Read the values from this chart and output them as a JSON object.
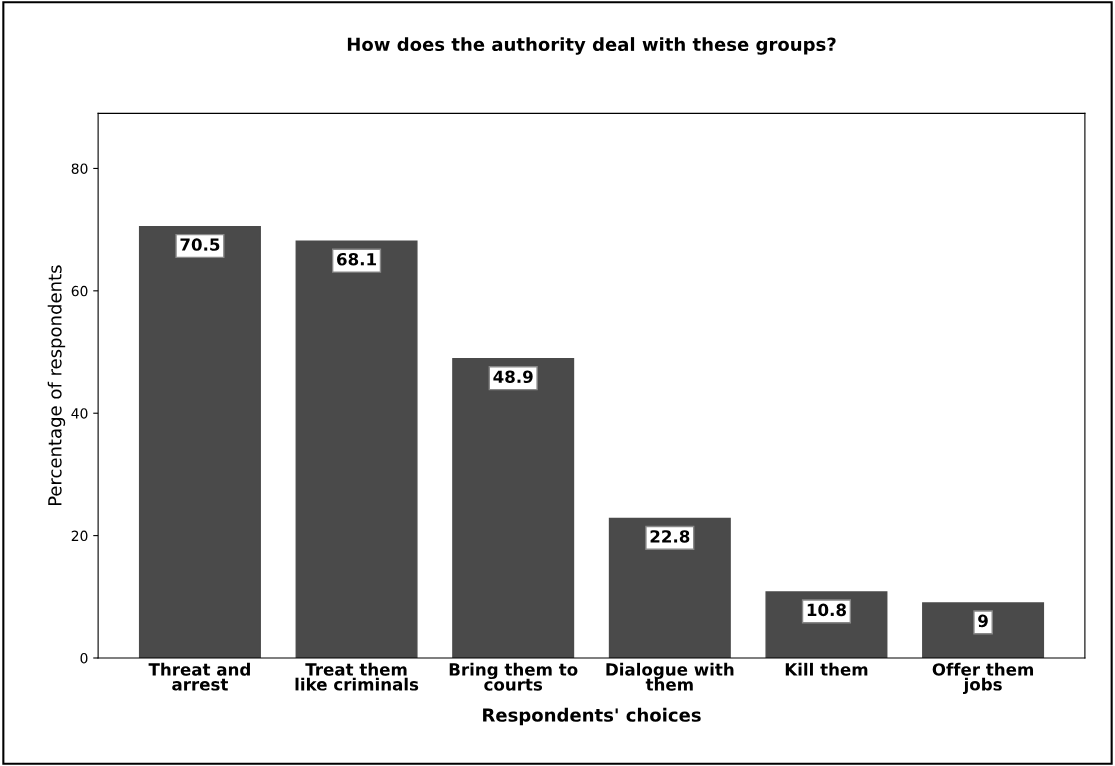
{
  "chart_data": {
    "type": "bar",
    "title": "How does the authority deal with these groups?",
    "xlabel": "Respondents' choices",
    "ylabel": "Percentage of respondents",
    "categories": [
      "Threat and\narrest",
      "Treat them\nlike criminals",
      "Bring them to\ncourts",
      "Dialogue with\nthem",
      "Kill them",
      "Offer them\njobs"
    ],
    "values": [
      70.5,
      68.1,
      48.9,
      22.8,
      10.8,
      9
    ],
    "color": "#4a4a4a",
    "ylim": [
      0,
      89
    ],
    "yticks": [
      0,
      20,
      40,
      60,
      80
    ],
    "data_labels": true,
    "grid": false,
    "legend": false
  }
}
